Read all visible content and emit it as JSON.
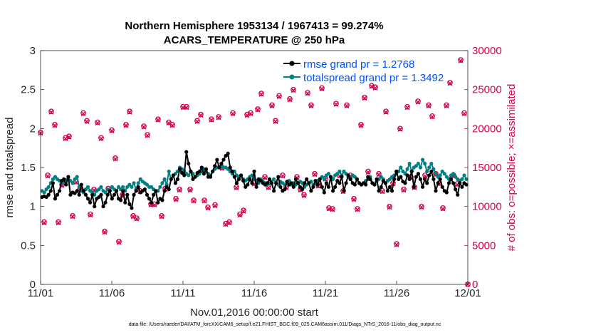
{
  "chart_data": {
    "type": "line",
    "title": "Northern Hemisphere 1953134 / 1967413 = 99.274%",
    "subtitle": "ACARS_TEMPERATURE @ 250 hPa",
    "xlabel": "Nov.01,2016 00:00:00 start",
    "ylabel": "rmse and totalspread",
    "ylabel_right": "# of obs: o=possible; ×=assimilated",
    "footnote": "data file: /Users/raeder/DAI/ATM_forcXX/CAM6_setup/f.e21.FHIST_BGC.f09_025.CAM6assim.011/Diags_NTrS_2016-11/obs_diag_output.nc",
    "x_ticks": [
      "11/01",
      "11/06",
      "11/11",
      "11/16",
      "11/21",
      "11/26",
      "12/01"
    ],
    "x_tick_days": [
      0,
      5,
      10,
      15,
      20,
      25,
      30
    ],
    "xlim": [
      0,
      30
    ],
    "ylim": [
      0,
      3
    ],
    "y_ticks": [
      "0",
      "0.5",
      "1",
      "1.5",
      "2",
      "2.5",
      "3"
    ],
    "y_tick_values": [
      0,
      0.5,
      1,
      1.5,
      2,
      2.5,
      3
    ],
    "ylim_right": [
      0,
      30000
    ],
    "y_ticks_right": [
      "0",
      "5000",
      "10000",
      "15000",
      "20000",
      "25000",
      "30000"
    ],
    "y_tick_values_right": [
      0,
      5000,
      10000,
      15000,
      20000,
      25000,
      30000
    ],
    "series": [
      {
        "name": "rmse grand pr = 1.2768",
        "color": "#000000",
        "axis": "left",
        "values": [
          1.12,
          1.13,
          1.12,
          1.15,
          1.2,
          1.3,
          1.1,
          1.15,
          1.2,
          1.33,
          1.35,
          1.28,
          1.38,
          1.15,
          1.18,
          1.17,
          1.2,
          1.15,
          1.28,
          1.2,
          1.15,
          1.1,
          1.05,
          1.15,
          1.0,
          1.1,
          1.12,
          1.15,
          1.0,
          1.05,
          1.15,
          1.2,
          1.1,
          1.15,
          1.2,
          1.1,
          1.08,
          1.2,
          1.05,
          1.15,
          1.03,
          0.98,
          1.15,
          1.2,
          1.25,
          1.18,
          1.2,
          1.22,
          1.15,
          1.1,
          1.05,
          1.15,
          1.2,
          1.05,
          1.1,
          1.08,
          1.2,
          1.25,
          1.22,
          1.35,
          1.4,
          1.3,
          1.35,
          1.48,
          1.43,
          1.4,
          1.7,
          1.55,
          1.45,
          1.35,
          1.38,
          1.43,
          1.45,
          1.5,
          1.42,
          1.48,
          1.38,
          1.38,
          1.45,
          1.52,
          1.6,
          1.5,
          1.55,
          1.6,
          1.65,
          1.68,
          1.5,
          1.45,
          1.38,
          1.3,
          1.35,
          1.4,
          1.33,
          1.25,
          1.28,
          1.35,
          1.3,
          1.45,
          1.25,
          1.35,
          1.33,
          1.3,
          1.28,
          1.3,
          1.35,
          1.3,
          1.2,
          1.3,
          1.38,
          1.25,
          1.2,
          1.22,
          1.32,
          1.28,
          1.3,
          1.25,
          1.35,
          1.3,
          1.25,
          1.22,
          1.3,
          1.35,
          1.3,
          1.2,
          1.25,
          1.33,
          1.28,
          1.35,
          1.25,
          1.18,
          1.3,
          1.25,
          1.38,
          1.2,
          1.25,
          1.33,
          1.3,
          1.38,
          1.2,
          1.3,
          1.4,
          1.35,
          1.3,
          1.28,
          1.35,
          1.3,
          1.28,
          1.3,
          1.28,
          1.38,
          1.35,
          1.3,
          1.28,
          1.35,
          1.2,
          1.25,
          1.33,
          1.3,
          1.2,
          1.25,
          1.2,
          1.35,
          1.45,
          1.35,
          1.38,
          1.32,
          1.3,
          1.4,
          1.35,
          1.45,
          1.25,
          1.38,
          1.42,
          1.35,
          1.25,
          1.35,
          1.3,
          1.4,
          1.45,
          1.35,
          1.2,
          1.3,
          1.35,
          1.25,
          1.2,
          1.18,
          1.3,
          1.35,
          1.3,
          1.22,
          1.15,
          1.3,
          1.25,
          1.3,
          1.28
        ]
      },
      {
        "name": "totalspread grand pr = 1.3492",
        "color": "#008080",
        "axis": "left",
        "values": [
          1.2,
          1.18,
          1.22,
          1.25,
          1.3,
          1.35,
          1.38,
          1.35,
          1.33,
          1.3,
          1.32,
          1.34,
          1.35,
          1.33,
          1.3,
          1.35,
          1.38,
          1.25,
          1.2,
          1.18,
          1.22,
          1.25,
          1.2,
          1.18,
          1.15,
          1.2,
          1.22,
          1.25,
          1.2,
          1.18,
          1.22,
          1.2,
          1.25,
          1.22,
          1.2,
          1.25,
          1.22,
          1.25,
          1.2,
          1.25,
          1.28,
          1.25,
          1.3,
          1.22,
          1.3,
          1.35,
          1.32,
          1.3,
          1.28,
          1.25,
          1.25,
          1.22,
          1.2,
          1.2,
          1.25,
          1.3,
          1.35,
          1.28,
          1.45,
          1.35,
          1.4,
          1.42,
          1.45,
          1.5,
          1.48,
          1.45,
          1.42,
          1.4,
          1.45,
          1.42,
          1.38,
          1.4,
          1.42,
          1.45,
          1.48,
          1.45,
          1.42,
          1.4,
          1.45,
          1.48,
          1.5,
          1.5,
          1.52,
          1.5,
          1.5,
          1.48,
          1.45,
          1.42,
          1.45,
          1.4,
          1.38,
          1.4,
          1.35,
          1.33,
          1.35,
          1.38,
          1.4,
          1.35,
          1.33,
          1.3,
          1.35,
          1.32,
          1.3,
          1.28,
          1.3,
          1.32,
          1.35,
          1.3,
          1.28,
          1.32,
          1.3,
          1.28,
          1.3,
          1.33,
          1.28,
          1.3,
          1.28,
          1.3,
          1.32,
          1.3,
          1.25,
          1.28,
          1.3,
          1.32,
          1.28,
          1.3,
          1.33,
          1.35,
          1.38,
          1.35,
          1.4,
          1.42,
          1.38,
          1.35,
          1.4,
          1.42,
          1.45,
          1.4,
          1.45,
          1.42,
          1.38,
          1.35,
          1.4,
          1.38,
          1.35,
          1.3,
          1.28,
          1.3,
          1.33,
          1.35,
          1.38,
          1.3,
          1.28,
          1.32,
          1.35,
          1.38,
          1.35,
          1.3,
          1.33,
          1.35,
          1.38,
          1.4,
          1.42,
          1.45,
          1.5,
          1.45,
          1.42,
          1.48,
          1.55,
          1.45,
          1.5,
          1.52,
          1.55,
          1.5,
          1.6,
          1.55,
          1.45,
          1.5,
          1.55,
          1.48,
          1.42,
          1.38,
          1.4,
          1.45,
          1.42,
          1.38,
          1.35,
          1.4,
          1.42,
          1.38,
          1.35,
          1.33,
          1.35,
          1.4,
          1.35
        ]
      },
      {
        "name": "possible obs",
        "color": "#d6004e",
        "axis": "right",
        "marker": "o",
        "values": [
          19500,
          8000,
          14000,
          22200,
          20500,
          8000,
          12800,
          18800,
          19000,
          8800,
          13200,
          12200,
          22000,
          21000,
          9000,
          12200,
          20800,
          18800,
          6800,
          12300,
          19800,
          16200,
          5500,
          11500,
          20500,
          22200,
          8800,
          8500,
          12000,
          20300,
          19200,
          10300,
          10300,
          21200,
          8800,
          12300,
          20800,
          20500,
          11000,
          12200,
          22800,
          22800,
          12200,
          10800,
          21000,
          21800,
          10800,
          9900,
          21200,
          10200,
          21500,
          15000,
          7800,
          8000,
          22000,
          12500,
          9000,
          9500,
          21800,
          22000,
          13000,
          22500,
          24500,
          13800,
          12500,
          23000,
          21000,
          24200,
          14000,
          12500,
          23800,
          25000,
          13800,
          12200,
          11500,
          24600,
          23000,
          14200,
          12700,
          25200,
          13600,
          9800,
          9700,
          23200,
          14000,
          12000,
          23000,
          14000,
          11000,
          9700,
          20500,
          24000,
          14500,
          25500,
          25300,
          14200,
          12000,
          22200,
          10000,
          13000,
          5200,
          20000,
          12200,
          22800,
          13800,
          12500,
          23500,
          10000,
          14000,
          23000,
          21600,
          14200,
          13000,
          9800,
          23000,
          25900,
          14000,
          12900,
          28800,
          22000,
          0
        ]
      },
      {
        "name": "assimilated obs",
        "color": "#d6004e",
        "axis": "right",
        "marker": "x",
        "values": [
          19400,
          7900,
          13900,
          22100,
          20400,
          7900,
          12700,
          18700,
          18900,
          8700,
          13100,
          12100,
          21900,
          20900,
          8900,
          12100,
          20700,
          18700,
          6700,
          12200,
          19700,
          16100,
          5400,
          11400,
          20400,
          22100,
          8700,
          8400,
          11900,
          20200,
          19100,
          10200,
          10200,
          21100,
          8700,
          12200,
          20700,
          20400,
          10900,
          12100,
          22700,
          22700,
          12100,
          10700,
          20900,
          21700,
          10700,
          9800,
          21100,
          10100,
          21400,
          14900,
          7700,
          7900,
          21900,
          12400,
          8900,
          9400,
          21700,
          21900,
          12900,
          22400,
          24400,
          13700,
          12400,
          22900,
          20900,
          24100,
          13900,
          12400,
          23700,
          24900,
          13700,
          12100,
          11400,
          24500,
          22900,
          14100,
          12600,
          25100,
          13500,
          9700,
          9600,
          23100,
          13900,
          11900,
          22900,
          13900,
          10900,
          9600,
          20400,
          23900,
          14400,
          25400,
          25200,
          14100,
          11900,
          22100,
          9900,
          12900,
          5100,
          19900,
          12100,
          22700,
          13700,
          12400,
          23400,
          9900,
          13900,
          22900,
          21500,
          14100,
          12900,
          9700,
          22900,
          25800,
          13900,
          12800,
          28700,
          21900,
          0
        ]
      }
    ]
  }
}
